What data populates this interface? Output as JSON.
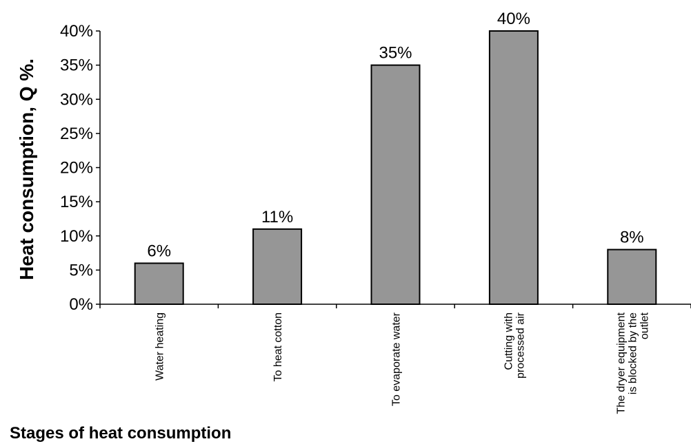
{
  "chart_data": {
    "type": "bar",
    "ylabel": "Heat consumption, Q %.",
    "xlabel": "Stages of heat consumption",
    "categories": [
      [
        "Water heating"
      ],
      [
        "To heat cotton"
      ],
      [
        "To evaporate water"
      ],
      [
        "Cutting with",
        "processed air"
      ],
      [
        "The dryer equipment",
        "is blocked by the",
        "outlet"
      ]
    ],
    "values": [
      6,
      11,
      35,
      40,
      8
    ],
    "value_labels": [
      "6%",
      "11%",
      "35%",
      "40%",
      "8%"
    ],
    "ylim": [
      0,
      40
    ],
    "yticks": [
      0,
      5,
      10,
      15,
      20,
      25,
      30,
      35,
      40
    ],
    "ytick_labels": [
      "0%",
      "5%",
      "10%",
      "15%",
      "20%",
      "25%",
      "30%",
      "35%",
      "40%"
    ],
    "grid": false,
    "colors": {
      "bar": "#969696",
      "bar_stroke": "#000000",
      "axis": "#000000"
    }
  }
}
